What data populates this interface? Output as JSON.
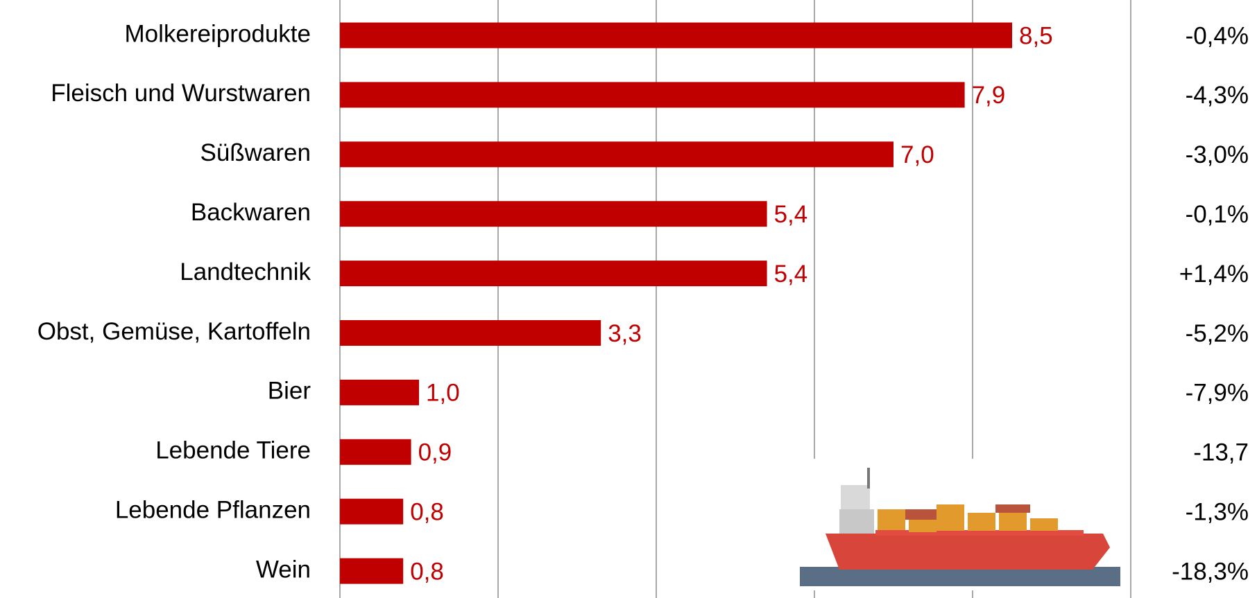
{
  "chart_data": {
    "type": "bar",
    "orientation": "horizontal",
    "categories": [
      "Molkereiprodukte",
      "Fleisch und Wurstwaren",
      "Süßwaren",
      "Backwaren",
      "Landtechnik",
      "Obst, Gemüse, Kartoffeln",
      "Bier",
      "Lebende Tiere",
      "Lebende Pflanzen",
      "Wein"
    ],
    "values": [
      8.5,
      7.9,
      7.0,
      5.4,
      5.4,
      3.3,
      1.0,
      0.9,
      0.8,
      0.8
    ],
    "value_labels": [
      "8,5",
      "7,9",
      "7,0",
      "5,4",
      "5,4",
      "3,3",
      "1,0",
      "0,9",
      "0,8",
      "0,8"
    ],
    "color": "#c00000",
    "change_values": [
      -0.4,
      -4.3,
      -3.0,
      -0.1,
      1.4,
      -5.2,
      -7.9,
      -13.7,
      -1.3,
      -18.3
    ],
    "change_labels": [
      "-0,4%",
      "-4,3%",
      "-3,0%",
      "-0,1%",
      "+1,4%",
      "-5,2%",
      "-7,9%",
      "-13,7",
      "-1,3%",
      "-18,3%"
    ],
    "xlim": [
      0,
      10
    ],
    "xticks": [
      0,
      2,
      4,
      6,
      8,
      10
    ],
    "grid": true
  }
}
